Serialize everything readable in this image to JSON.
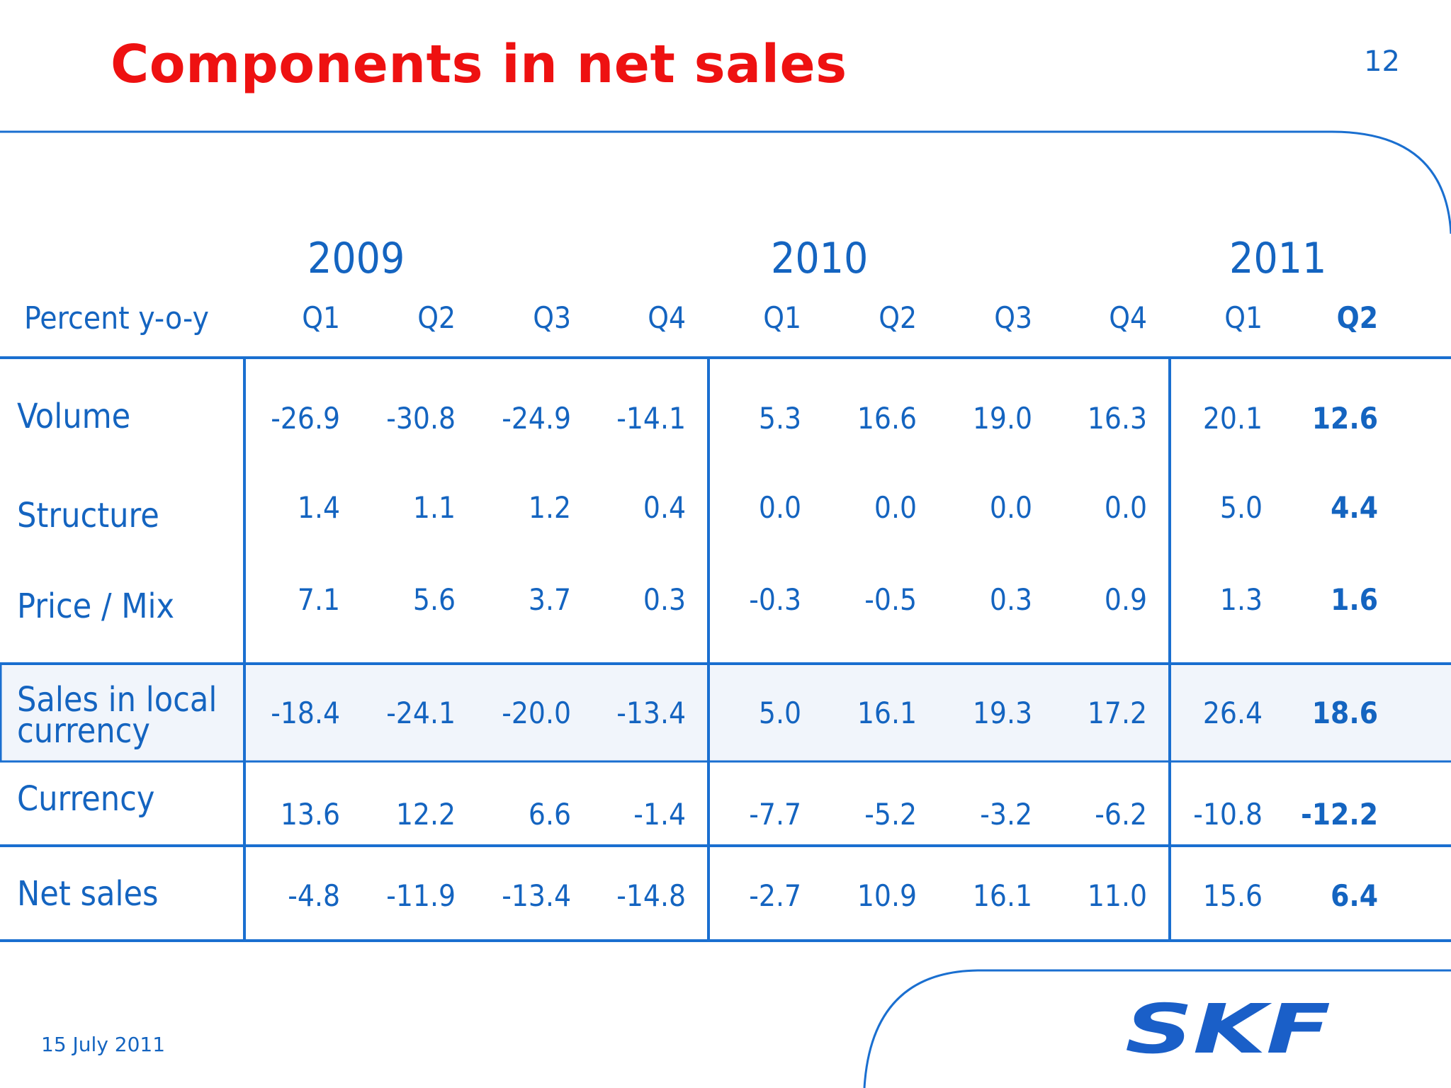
{
  "slide": {
    "title": "Components in net sales",
    "page_number": "12",
    "date": "15 July 2011"
  },
  "table": {
    "row_header": "Percent y-o-y",
    "years": [
      "2009",
      "2010",
      "2011"
    ],
    "quarters": [
      "Q1",
      "Q2",
      "Q3",
      "Q4",
      "Q1",
      "Q2",
      "Q3",
      "Q4",
      "Q1",
      "Q2"
    ],
    "rows": [
      {
        "label": "Volume",
        "values": [
          "-26.9",
          "-30.8",
          "-24.9",
          "-14.1",
          "5.3",
          "16.6",
          "19.0",
          "16.3",
          "20.1",
          "12.6"
        ]
      },
      {
        "label": "Structure",
        "values": [
          "1.4",
          "1.1",
          "1.2",
          "0.4",
          "0.0",
          "0.0",
          "0.0",
          "0.0",
          "5.0",
          "4.4"
        ]
      },
      {
        "label": "Price / Mix",
        "values": [
          "7.1",
          "5.6",
          "3.7",
          "0.3",
          "-0.3",
          "-0.5",
          "0.3",
          "0.9",
          "1.3",
          "1.6"
        ]
      },
      {
        "label": "Sales in local currency",
        "values": [
          "-18.4",
          "-24.1",
          "-20.0",
          "-13.4",
          "5.0",
          "16.1",
          "19.3",
          "17.2",
          "26.4",
          "18.6"
        ]
      },
      {
        "label": "Currency",
        "values": [
          "13.6",
          "12.2",
          "6.6",
          "-1.4",
          "-7.7",
          "-5.2",
          "-3.2",
          "-6.2",
          "-10.8",
          "-12.2"
        ]
      },
      {
        "label": "Net sales",
        "values": [
          "-4.8",
          "-11.9",
          "-13.4",
          "-14.8",
          "-2.7",
          "10.9",
          "16.1",
          "11.0",
          "15.6",
          "6.4"
        ]
      }
    ]
  },
  "colors": {
    "title": "#ee1111",
    "text": "#1464c0",
    "lines": "#1a6fd0",
    "highlight": "#f1f5fb"
  },
  "logo": {
    "text": "SKF",
    "color": "#1a5fc8"
  }
}
